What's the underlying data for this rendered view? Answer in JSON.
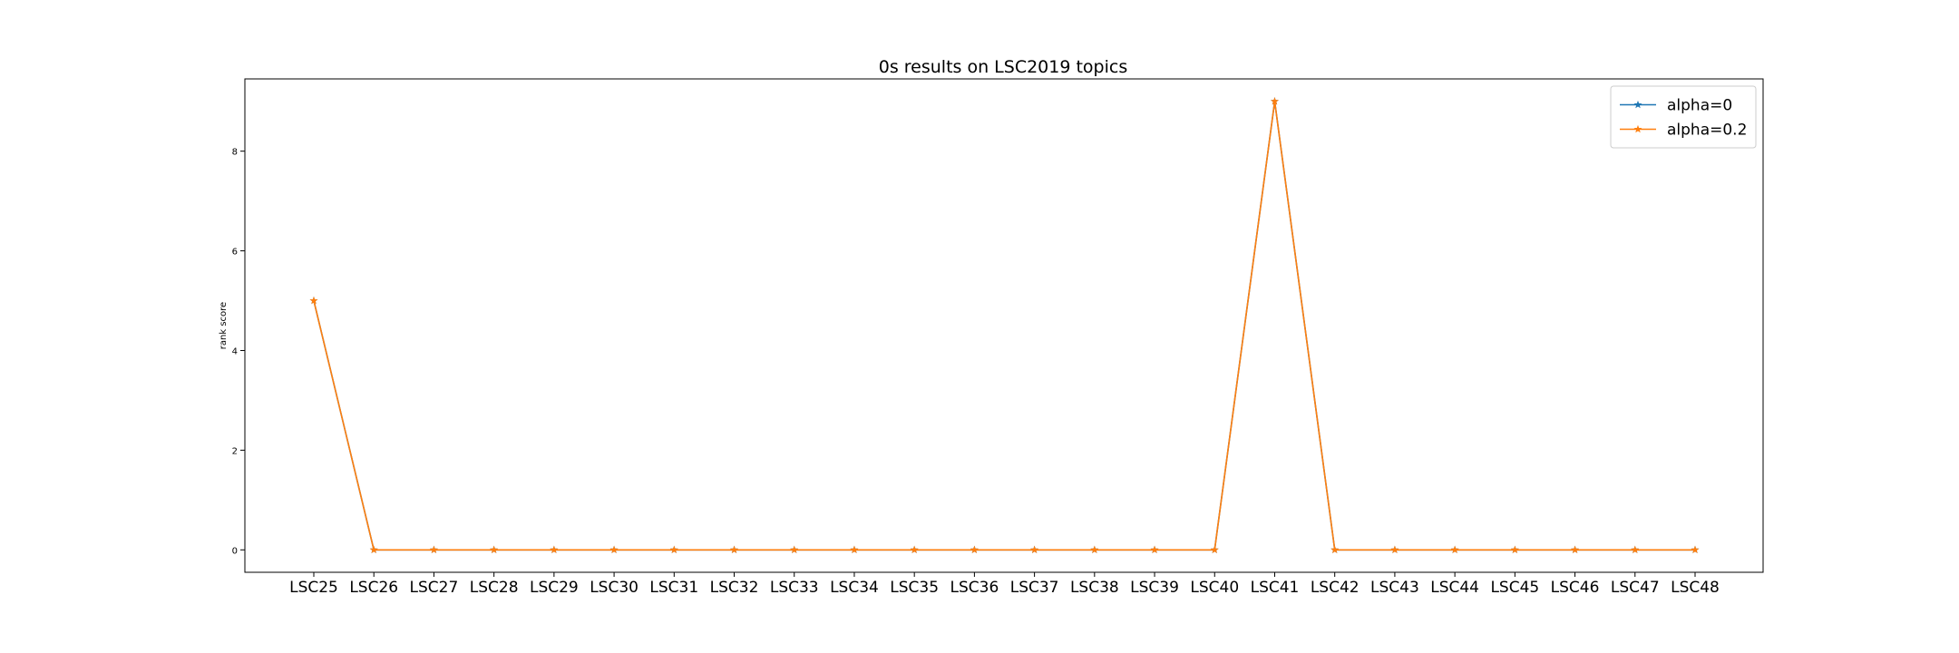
{
  "chart_data": {
    "type": "line",
    "title": "0s results on LSC2019 topics",
    "xlabel": "",
    "ylabel": "rank score",
    "categories": [
      "LSC25",
      "LSC26",
      "LSC27",
      "LSC28",
      "LSC29",
      "LSC30",
      "LSC31",
      "LSC32",
      "LSC33",
      "LSC34",
      "LSC35",
      "LSC36",
      "LSC37",
      "LSC38",
      "LSC39",
      "LSC40",
      "LSC41",
      "LSC42",
      "LSC43",
      "LSC44",
      "LSC45",
      "LSC46",
      "LSC47",
      "LSC48"
    ],
    "series": [
      {
        "name": "alpha=0",
        "color": "#1f77b4",
        "marker": "star",
        "values": [
          5,
          0,
          0,
          0,
          0,
          0,
          0,
          0,
          0,
          0,
          0,
          0,
          0,
          0,
          0,
          0,
          9,
          0,
          0,
          0,
          0,
          0,
          0,
          0
        ]
      },
      {
        "name": "alpha=0.2",
        "color": "#ff7f0e",
        "marker": "star",
        "values": [
          5,
          0,
          0,
          0,
          0,
          0,
          0,
          0,
          0,
          0,
          0,
          0,
          0,
          0,
          0,
          0,
          9,
          0,
          0,
          0,
          0,
          0,
          0,
          0
        ]
      }
    ],
    "yticks": [
      0,
      2,
      4,
      6,
      8
    ],
    "ylim": [
      -0.45,
      9.45
    ],
    "grid": false,
    "legend_position": "top-right"
  }
}
